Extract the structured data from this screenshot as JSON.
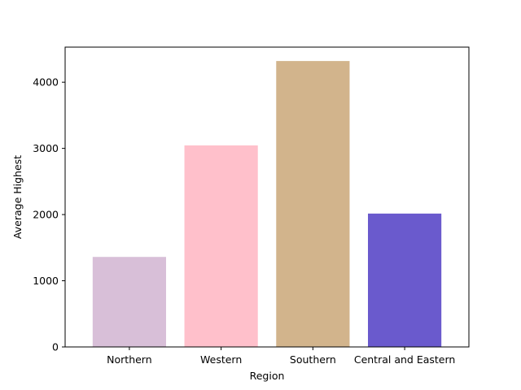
{
  "chart_data": {
    "type": "bar",
    "title": "",
    "xlabel": "Region",
    "ylabel": "Average Highest",
    "categories": [
      "Northern",
      "Western",
      "Southern",
      "Central and Eastern"
    ],
    "values": [
      1360,
      3045,
      4320,
      2015
    ],
    "colors": [
      "#d8bfd8",
      "#ffc0cb",
      "#d2b48c",
      "#6a5acd"
    ],
    "ylim": [
      0,
      4530
    ],
    "yticks": [
      0,
      1000,
      2000,
      3000,
      4000
    ],
    "grid": false,
    "legend": "none"
  }
}
